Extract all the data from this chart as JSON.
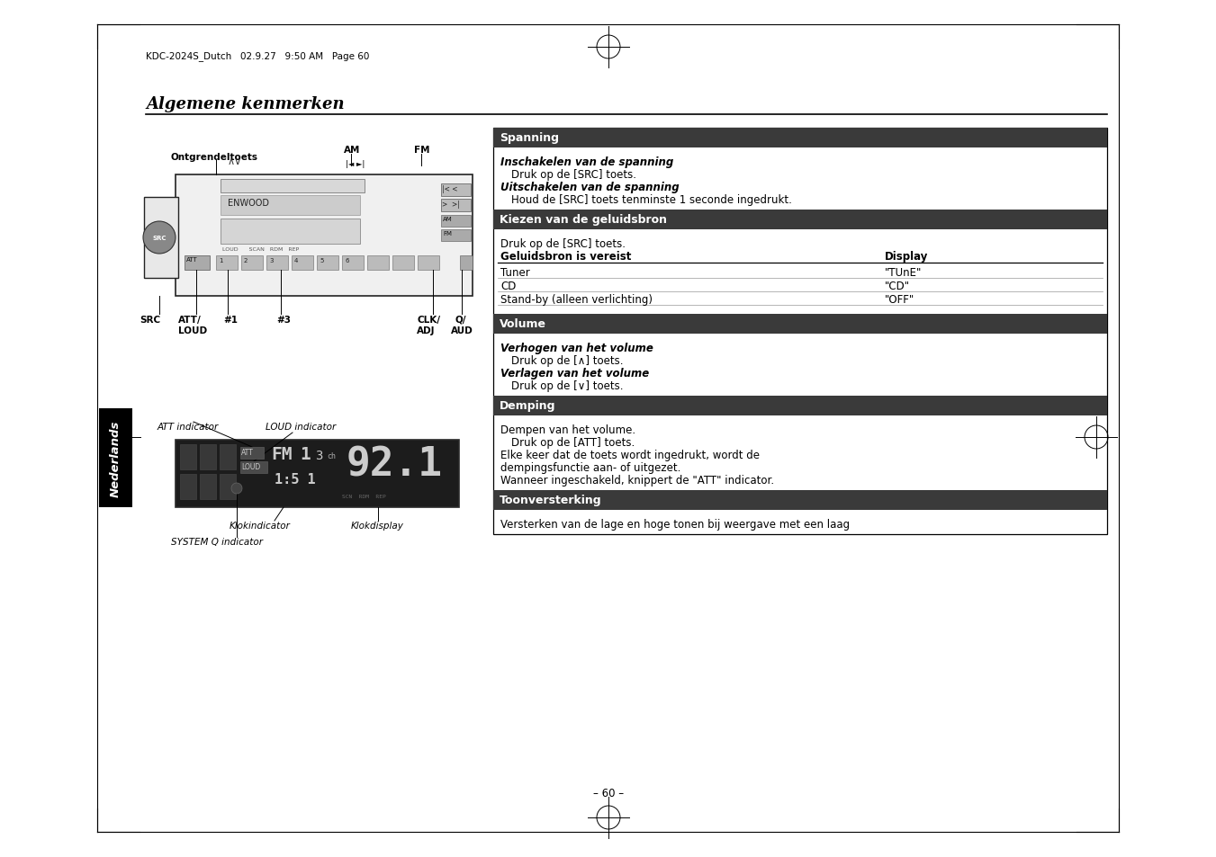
{
  "bg_color": "#ffffff",
  "page_header": "KDC-2024S_Dutch   02.9.27   9:50 AM   Page 60",
  "title": "Algemene kenmerken",
  "section1_header": "Spanning",
  "section2_header": "Kiezen van de geluidsbron",
  "section2_table_rows": [
    [
      "Tuner",
      "\"TUnE\""
    ],
    [
      "CD",
      "\"CD\""
    ],
    [
      "Stand-by (alleen verlichting)",
      "\"OFF\""
    ]
  ],
  "section3_header": "Volume",
  "section4_header": "Demping",
  "section5_header": "Toonversterking",
  "section5_content": "Versterken van de lage en hoge tonen bij weergave met een laag",
  "page_number": "– 60 –",
  "sidebar_text": "Nederlands",
  "header_bg": "#3a3a3a",
  "header_color": "#ffffff"
}
